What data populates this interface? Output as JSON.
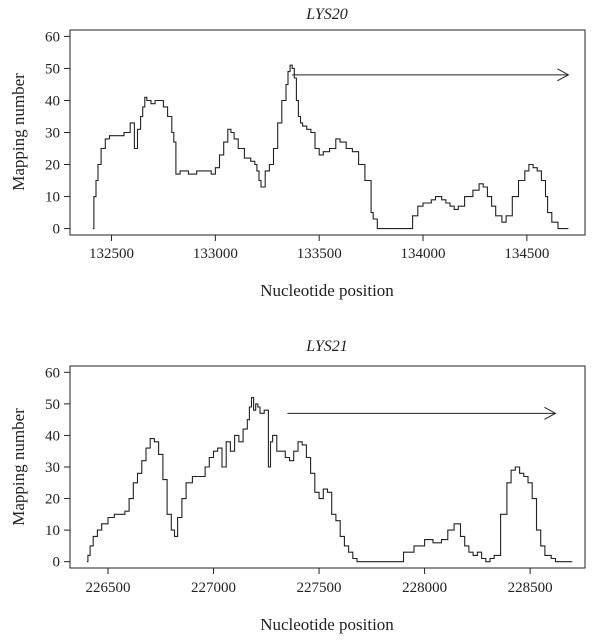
{
  "chart_data": [
    {
      "type": "line",
      "title": "LYS20",
      "xlabel": "Nucleotide position",
      "ylabel": "Mapping number",
      "xlim": [
        132300,
        134780
      ],
      "ylim": [
        -2,
        62
      ],
      "xticks": [
        "132500",
        "133000",
        "133500",
        "134000",
        "134500"
      ],
      "yticks": [
        "0",
        "10",
        "20",
        "30",
        "40",
        "50",
        "60"
      ],
      "grid": false,
      "legend": "none",
      "annotation": {
        "type": "arrow",
        "direction": "right",
        "x_start": 133370,
        "x_end": 134700,
        "y": 48
      },
      "series": [
        {
          "x": [
            132410,
            132415,
            132425,
            132435,
            132450,
            132470,
            132490,
            132510,
            132530,
            132560,
            132590,
            132610,
            132625,
            132640,
            132650,
            132660,
            132670,
            132690,
            132710,
            132730,
            132750,
            132770,
            132790,
            132800,
            132810,
            132830,
            132870,
            132910,
            132950,
            132980,
            133000,
            133020,
            133040,
            133060,
            133075,
            133090,
            133110,
            133140,
            133170,
            133190,
            133200,
            133210,
            133220,
            133240,
            133260,
            133280,
            133300,
            133320,
            133340,
            133350,
            133360,
            133370,
            133380,
            133390,
            133400,
            133410,
            133420,
            133440,
            133460,
            133480,
            133500,
            133520,
            133550,
            133580,
            133600,
            133630,
            133660,
            133690,
            133720,
            133750,
            133760,
            133780,
            133800,
            133830,
            133880,
            133920,
            133950,
            133975,
            134000,
            134040,
            134060,
            134090,
            134110,
            134130,
            134150,
            134170,
            134200,
            134240,
            134270,
            134290,
            134310,
            134330,
            134350,
            134380,
            134400,
            134430,
            134460,
            134490,
            134510,
            134530,
            134550,
            134570,
            134590,
            134600,
            134620,
            134650,
            134700
          ],
          "y": [
            0,
            10,
            15,
            20,
            25,
            28,
            29,
            29,
            29,
            30,
            33,
            25,
            31,
            35,
            38,
            41,
            40,
            39,
            40,
            40,
            38,
            35,
            30,
            27,
            17,
            18,
            17,
            18,
            18,
            17,
            19,
            23,
            27,
            31,
            30,
            28,
            25,
            22,
            21,
            20,
            18,
            15,
            13,
            18,
            20,
            25,
            33,
            40,
            45,
            49,
            51,
            50,
            47,
            40,
            35,
            33,
            32,
            31,
            30,
            25,
            23,
            24,
            25,
            28,
            27,
            25,
            24,
            20,
            15,
            5,
            3,
            0,
            0,
            0,
            0,
            0,
            4,
            7,
            8,
            9,
            10,
            9,
            8,
            7,
            6,
            7,
            10,
            12,
            14,
            13,
            10,
            7,
            4,
            2,
            4,
            10,
            15,
            18,
            20,
            19,
            18,
            15,
            10,
            5,
            2,
            0,
            0
          ]
        }
      ]
    },
    {
      "type": "line",
      "title": "LYS21",
      "xlabel": "Nucleotide position",
      "ylabel": "Mapping number",
      "xlim": [
        226320,
        228760
      ],
      "ylim": [
        -2,
        62
      ],
      "xticks": [
        "226500",
        "227000",
        "227500",
        "228000",
        "228500"
      ],
      "yticks": [
        "0",
        "10",
        "20",
        "30",
        "40",
        "50",
        "60"
      ],
      "grid": false,
      "legend": "none",
      "annotation": {
        "type": "arrow",
        "direction": "right",
        "x_start": 227350,
        "x_end": 228620,
        "y": 47
      },
      "series": [
        {
          "x": [
            226400,
            226405,
            226415,
            226430,
            226450,
            226470,
            226500,
            226530,
            226560,
            226580,
            226600,
            226620,
            226640,
            226660,
            226680,
            226700,
            226720,
            226740,
            226760,
            226780,
            226800,
            226815,
            226830,
            226850,
            226870,
            226900,
            226930,
            226960,
            226980,
            227000,
            227020,
            227040,
            227060,
            227080,
            227100,
            227120,
            227140,
            227160,
            227170,
            227180,
            227190,
            227200,
            227210,
            227220,
            227240,
            227260,
            227270,
            227280,
            227300,
            227320,
            227340,
            227360,
            227380,
            227400,
            227420,
            227440,
            227460,
            227480,
            227500,
            227520,
            227540,
            227560,
            227580,
            227600,
            227620,
            227640,
            227660,
            227680,
            227700,
            227720,
            227740,
            227760,
            227780,
            227800,
            227850,
            227900,
            227950,
            228000,
            228040,
            228080,
            228110,
            228140,
            228170,
            228190,
            228210,
            228230,
            228250,
            228270,
            228290,
            228310,
            228330,
            228360,
            228390,
            228410,
            228430,
            228450,
            228470,
            228490,
            228510,
            228530,
            228550,
            228570,
            228600,
            228620,
            228650,
            228700
          ],
          "y": [
            0,
            2,
            5,
            8,
            10,
            12,
            14,
            15,
            15,
            16,
            20,
            25,
            28,
            32,
            36,
            39,
            38,
            34,
            26,
            15,
            10,
            8,
            14,
            20,
            25,
            27,
            27,
            30,
            33,
            35,
            36,
            30,
            38,
            35,
            40,
            38,
            42,
            45,
            49,
            52,
            48,
            50,
            49,
            47,
            48,
            30,
            38,
            40,
            35,
            35,
            33,
            32,
            35,
            38,
            37,
            33,
            28,
            22,
            20,
            23,
            22,
            15,
            13,
            8,
            5,
            3,
            1,
            0,
            0,
            0,
            0,
            0,
            0,
            0,
            0,
            3,
            5,
            7,
            6,
            7,
            10,
            12,
            8,
            5,
            3,
            2,
            3,
            1,
            0,
            1,
            2,
            15,
            25,
            29,
            30,
            28,
            27,
            25,
            20,
            10,
            5,
            2,
            1,
            0,
            0,
            0
          ]
        }
      ]
    }
  ]
}
